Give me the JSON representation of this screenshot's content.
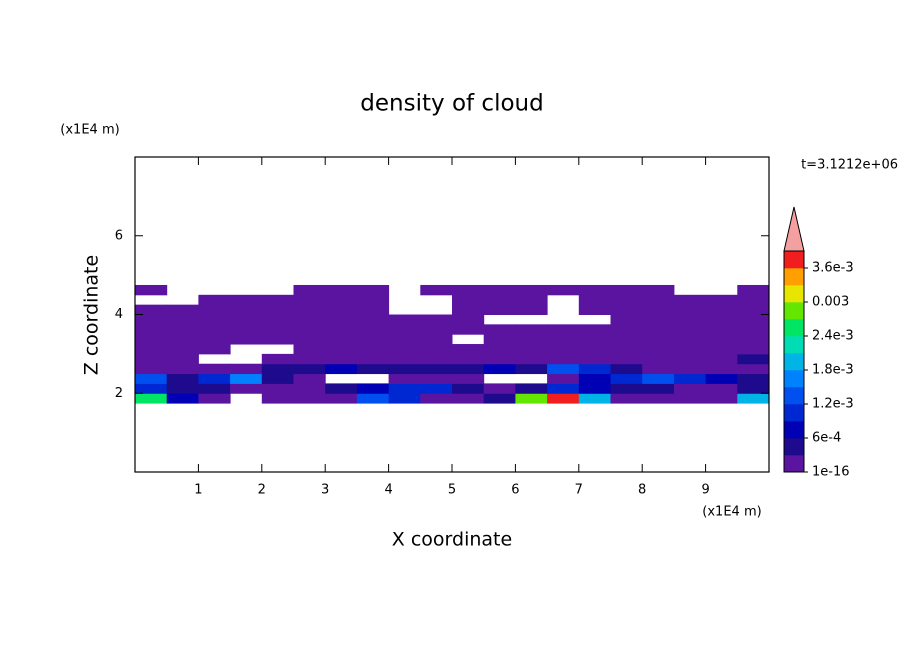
{
  "chart_data": {
    "type": "contour",
    "title": "density of cloud",
    "x_label": "X coordinate",
    "y_label": "Z coordinate",
    "x_unit": "(x1E4 m)",
    "y_unit": "(x1E4 m)",
    "time_label": "t=3.1212e+06",
    "xlim": [
      0,
      10
    ],
    "ylim": [
      0,
      8
    ],
    "xticks": [
      1,
      2,
      3,
      4,
      5,
      6,
      7,
      8,
      9
    ],
    "yticks": [
      2,
      4,
      6
    ],
    "colorbar": {
      "clim": [
        1e-16,
        0.0039
      ],
      "colors": [
        "#5a14a0",
        "#1e0a8c",
        "#0000b4",
        "#0028d2",
        "#0050f0",
        "#0082ff",
        "#00b4e6",
        "#00dcb4",
        "#00e664",
        "#64e600",
        "#e6e600",
        "#ffa000",
        "#f01e1e"
      ],
      "over_color": "#f4a0a0",
      "ticks": [
        {
          "value": 1e-16,
          "label": "1e-16"
        },
        {
          "value": 0.0006,
          "label": "6e-4"
        },
        {
          "value": 0.0012,
          "label": "1.2e-3"
        },
        {
          "value": 0.0018,
          "label": "1.8e-3"
        },
        {
          "value": 0.0024,
          "label": "2.4e-3"
        },
        0.003,
        {
          "value": 0.0036,
          "label": "3.6e-3"
        }
      ]
    },
    "field": {
      "x": [
        0.25,
        0.75,
        1.25,
        1.75,
        2.25,
        2.75,
        3.25,
        3.75,
        4.25,
        4.75,
        5.25,
        5.75,
        6.25,
        6.75,
        7.25,
        7.75,
        8.25,
        8.75,
        9.25,
        9.75
      ],
      "z": [
        1.875,
        2.125,
        2.375,
        2.625,
        2.875,
        3.125,
        3.375,
        3.625,
        3.875,
        4.125,
        4.375,
        4.625
      ],
      "values": [
        [
          0.0025,
          0.0008,
          0.0003,
          null,
          0.0001,
          0.0001,
          0.0002,
          0.0015,
          0.0012,
          0.0002,
          0.0001,
          0.0004,
          0.003,
          0.0038,
          0.002,
          0.0003,
          0.0001,
          0.0001,
          0.0001,
          0.002
        ],
        [
          0.0012,
          0.0006,
          0.0004,
          0.0002,
          0.0001,
          0.0002,
          0.0004,
          0.0008,
          0.001,
          0.0012,
          0.0004,
          0.0003,
          0.0006,
          0.0012,
          0.0008,
          0.0006,
          0.0004,
          0.0003,
          0.0002,
          0.0004
        ],
        [
          0.0015,
          0.0004,
          0.0012,
          0.0018,
          0.0006,
          0.0003,
          null,
          null,
          0.0002,
          0.0003,
          0.0002,
          null,
          null,
          0.0003,
          0.0008,
          0.0012,
          0.0015,
          0.0012,
          0.0008,
          0.0006
        ],
        [
          0.0002,
          0.0001,
          0.0002,
          0.0003,
          0.0004,
          0.0006,
          0.0008,
          0.0006,
          0.0004,
          0.0004,
          0.0006,
          0.0008,
          0.0006,
          0.0015,
          0.0012,
          0.0004,
          0.0003,
          0.0002,
          0.0002,
          0.0001
        ],
        [
          0.0003,
          0.0001,
          null,
          null,
          0.0001,
          0.0001,
          0.0001,
          0.0002,
          0.0002,
          0.0001,
          0.0001,
          0.0002,
          0.0003,
          0.0003,
          0.0002,
          0.0001,
          0.0001,
          0.0001,
          0.0003,
          0.0004
        ],
        [
          0.0002,
          0.0001,
          0.0001,
          null,
          null,
          0.0001,
          0.0001,
          0.0001,
          0.0001,
          0.0001,
          0.0001,
          0.0001,
          0.0001,
          0.0002,
          0.0001,
          0.0001,
          0.0001,
          0.0001,
          0.0002,
          0.0003
        ],
        [
          0.0001,
          0.0001,
          0.0001,
          0.0001,
          0.0001,
          0.0001,
          0.0001,
          0.0001,
          0.0001,
          0.0001,
          null,
          0.0001,
          0.0001,
          0.0001,
          0.0001,
          0.0001,
          0.0001,
          0.0001,
          0.0001,
          0.0001
        ],
        [
          0.0001,
          0.0001,
          0.0001,
          0.0001,
          0.0001,
          0.0001,
          0.0001,
          0.0001,
          0.0001,
          0.0001,
          0.0001,
          0.0001,
          0.0001,
          0.0001,
          0.0001,
          0.0001,
          0.0001,
          0.0001,
          0.0001,
          0.0001
        ],
        [
          0.0001,
          0.0001,
          0.0001,
          0.0001,
          0.0001,
          0.0001,
          0.0001,
          0.0001,
          0.0001,
          0.0001,
          0.0001,
          null,
          null,
          null,
          null,
          0.0001,
          0.0001,
          0.0001,
          0.0001,
          0.0001
        ],
        [
          0.0001,
          0.0001,
          0.0001,
          0.0001,
          0.0001,
          0.0001,
          0.0001,
          0.0001,
          null,
          null,
          0.0001,
          0.0001,
          0.0001,
          null,
          0.0001,
          0.0001,
          0.0001,
          0.0001,
          0.0001,
          0.0001
        ],
        [
          null,
          null,
          0.0001,
          0.0001,
          0.0001,
          0.0001,
          0.0001,
          0.0001,
          null,
          null,
          0.0001,
          0.0001,
          0.0001,
          null,
          0.0001,
          0.0001,
          0.0001,
          0.0001,
          0.0001,
          0.0001
        ],
        [
          0.0001,
          null,
          null,
          null,
          null,
          0.0001,
          0.0001,
          0.0001,
          null,
          0.0001,
          0.0001,
          0.0001,
          0.0001,
          0.0001,
          0.0001,
          0.0001,
          0.0001,
          null,
          null,
          0.0001
        ]
      ]
    }
  }
}
